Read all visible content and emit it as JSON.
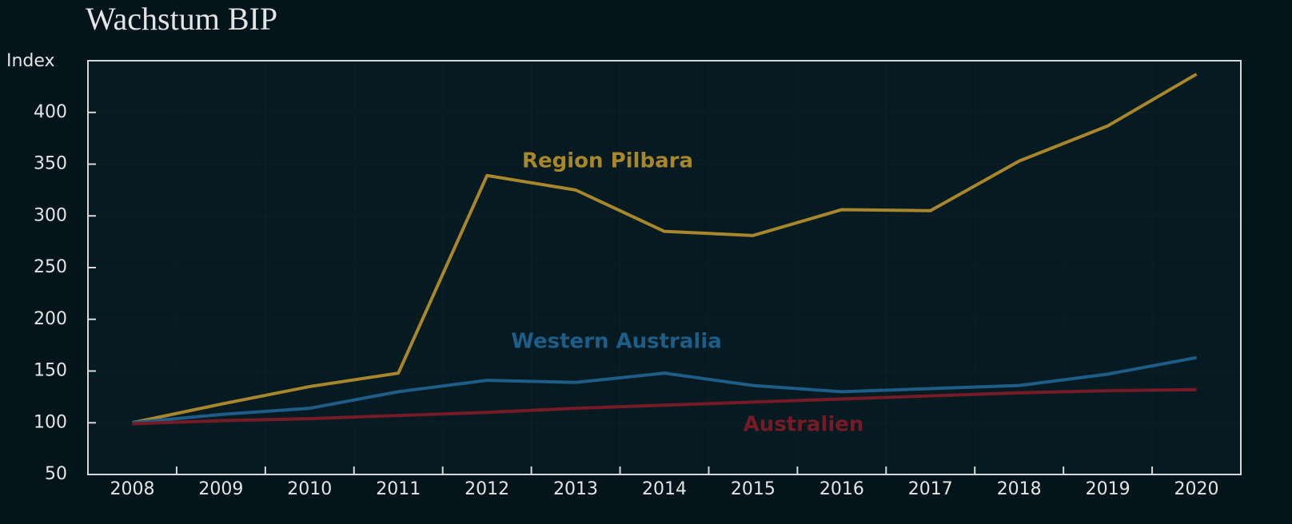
{
  "chart_data": {
    "type": "line",
    "title": "Wachstum BIP",
    "y_label": "Index",
    "categories": [
      "2008",
      "2009",
      "2010",
      "2011",
      "2012",
      "2013",
      "2014",
      "2015",
      "2016",
      "2017",
      "2018",
      "2019",
      "2020"
    ],
    "series": [
      {
        "name": "Region Pilbara",
        "color": "#a8862c",
        "values": [
          100,
          118,
          135,
          148,
          339,
          325,
          285,
          281,
          306,
          305,
          353,
          387,
          437
        ]
      },
      {
        "name": "Western Australia",
        "color": "#1e5d88",
        "values": [
          100,
          108,
          114,
          130,
          141,
          139,
          148,
          136,
          130,
          133,
          136,
          147,
          163
        ]
      },
      {
        "name": "Australien",
        "color": "#761a26",
        "values": [
          99,
          102,
          104,
          107,
          110,
          114,
          117,
          120,
          123,
          126,
          129,
          131,
          132
        ]
      }
    ],
    "ylim": [
      50,
      450
    ],
    "yticks": [
      50,
      100,
      150,
      200,
      250,
      300,
      350,
      400
    ],
    "grid": true
  }
}
